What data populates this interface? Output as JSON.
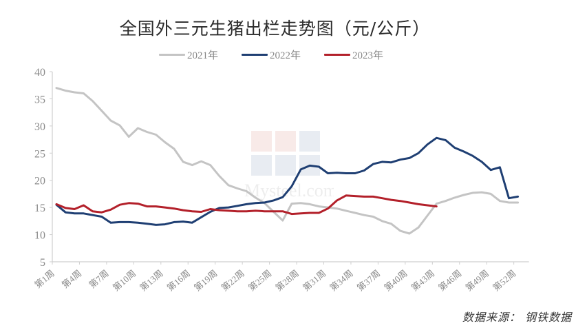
{
  "chart_data": {
    "type": "line",
    "title": "全国外三元生猪出栏走势图（元/公斤）",
    "xlabel": "",
    "ylabel": "",
    "ylim": [
      5,
      40
    ],
    "yticks": [
      5,
      10,
      15,
      20,
      25,
      30,
      35,
      40
    ],
    "grid": false,
    "legend_position": "top",
    "x": [
      "第1周",
      "第2周",
      "第3周",
      "第4周",
      "第5周",
      "第6周",
      "第7周",
      "第8周",
      "第9周",
      "第10周",
      "第11周",
      "第12周",
      "第13周",
      "第14周",
      "第15周",
      "第16周",
      "第17周",
      "第18周",
      "第19周",
      "第20周",
      "第21周",
      "第22周",
      "第23周",
      "第24周",
      "第25周",
      "第26周",
      "第27周",
      "第28周",
      "第29周",
      "第30周",
      "第31周",
      "第32周",
      "第33周",
      "第34周",
      "第35周",
      "第36周",
      "第37周",
      "第38周",
      "第39周",
      "第40周",
      "第41周",
      "第42周",
      "第43周",
      "第44周",
      "第45周",
      "第46周",
      "第47周",
      "第48周",
      "第49周",
      "第50周",
      "第51周",
      "第52周"
    ],
    "xtick_labels": [
      "第1周",
      "第4周",
      "第7周",
      "第10周",
      "第13周",
      "第16周",
      "第19周",
      "第22周",
      "第25周",
      "第28周",
      "第31周",
      "第34周",
      "第37周",
      "第40周",
      "第43周",
      "第46周",
      "第49周",
      "第52周"
    ],
    "series": [
      {
        "name": "2021年",
        "color": "#c4c4c4",
        "values": [
          37.0,
          36.5,
          36.2,
          36.0,
          34.6,
          32.8,
          31.0,
          30.1,
          28.0,
          29.6,
          28.9,
          28.4,
          27.0,
          25.8,
          23.4,
          22.8,
          23.5,
          22.8,
          20.8,
          19.1,
          18.5,
          18.0,
          16.8,
          15.8,
          14.2,
          12.6,
          15.7,
          15.8,
          15.6,
          15.2,
          15.0,
          14.8,
          14.4,
          14.0,
          13.6,
          13.3,
          12.5,
          12.0,
          10.7,
          10.2,
          11.3,
          13.5,
          15.7,
          16.2,
          16.8,
          17.3,
          17.7,
          17.8,
          17.5,
          16.2,
          15.9,
          15.9
        ]
      },
      {
        "name": "2022年",
        "color": "#1f3f73",
        "values": [
          15.5,
          14.1,
          13.9,
          13.9,
          13.6,
          13.3,
          12.2,
          12.3,
          12.3,
          12.2,
          12.0,
          11.8,
          11.9,
          12.3,
          12.4,
          12.2,
          13.2,
          14.2,
          14.9,
          15.0,
          15.3,
          15.6,
          15.8,
          15.9,
          16.3,
          16.9,
          18.9,
          22.0,
          22.7,
          22.5,
          21.3,
          21.4,
          21.3,
          21.3,
          21.8,
          23.0,
          23.4,
          23.3,
          23.8,
          24.1,
          25.0,
          26.6,
          27.8,
          27.4,
          26.0,
          25.3,
          24.5,
          23.4,
          21.9,
          22.4,
          16.7,
          17.0
        ]
      },
      {
        "name": "2023年",
        "color": "#b3202a",
        "values": [
          15.6,
          14.9,
          14.7,
          15.4,
          14.3,
          14.1,
          14.6,
          15.5,
          15.8,
          15.7,
          15.2,
          15.2,
          15.0,
          14.8,
          14.5,
          14.3,
          14.2,
          14.7,
          14.5,
          14.4,
          14.3,
          14.3,
          14.4,
          14.3,
          14.3,
          14.3,
          13.8,
          13.9,
          14.0,
          14.0,
          14.8,
          16.3,
          17.2,
          17.1,
          17.0,
          17.0,
          16.7,
          16.4,
          16.2,
          15.9,
          15.6,
          15.4,
          15.2
        ]
      }
    ],
    "source": "数据来源：  钢铁数据"
  },
  "header": {
    "title": "全国外三元生猪出栏走势图（元/公斤）"
  },
  "legend": {
    "items": [
      {
        "label": "2021年",
        "color": "#c4c4c4"
      },
      {
        "label": "2022年",
        "color": "#1f3f73"
      },
      {
        "label": "2023年",
        "color": "#b3202a"
      }
    ]
  },
  "footer": {
    "source": "数据来源：  钢铁数据"
  },
  "watermark": {
    "text": "Mysteel.com"
  }
}
